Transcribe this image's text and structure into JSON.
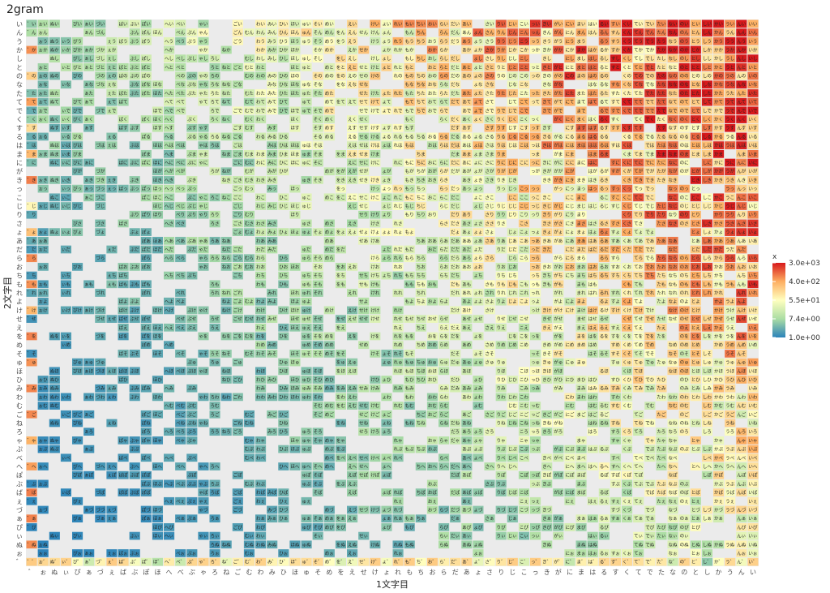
{
  "chart_data": {
    "type": "heatmap",
    "title": "2gram",
    "xlabel": "1文字目",
    "ylabel": "2文字目",
    "x_categories": [
      "゛",
      "ぉ",
      "ぬ",
      "ぃ",
      "ぴ",
      "ぁ",
      "づ",
      "ぇ",
      "ば",
      "ぶ",
      "ぽ",
      "ほ",
      "へ",
      "べ",
      "ぷ",
      "ゃ",
      "ろ",
      "ね",
      "ご",
      "む",
      "わ",
      "み",
      "ひ",
      "ほ",
      "ゅ",
      "そ",
      "め",
      "を",
      "え",
      "せ",
      "け",
      "ょ",
      "れ",
      "も",
      "ち",
      "お",
      "ら",
      "だ",
      "あ",
      "ょ",
      "さ",
      "り",
      "じ",
      "こ",
      "っ",
      "き",
      "が",
      "に",
      "ま",
      "は",
      "る",
      "す",
      "く",
      "て",
      "で",
      "た",
      "な",
      "の",
      "と",
      "し",
      "か",
      "う",
      "ん",
      "い"
    ],
    "y_categories": [
      "い",
      "ん",
      "う",
      "か",
      "し",
      "と",
      "の",
      "な",
      "た",
      "て",
      "で",
      "く",
      "す",
      "る",
      "は",
      "ま",
      "に",
      "が",
      "き",
      "っ",
      "こ",
      "じ",
      "り",
      "さ",
      "ょ",
      "あ",
      "だ",
      "ら",
      "お",
      "ち",
      "も",
      "れ",
      "よ",
      "け",
      "せ",
      "え",
      "を",
      "め",
      "そ",
      "ゅ",
      "ほ",
      "ひ",
      "み",
      "わ",
      "む",
      "ご",
      "ね",
      "ろ",
      "ゃ",
      "ぷ",
      "べ",
      "へ",
      "ぽ",
      "ぶ",
      "ば",
      "ぇ",
      "づ",
      "ぁ",
      "ぴ",
      "ぃ",
      "ぬ",
      "ぉ",
      "゛"
    ],
    "color_scale": {
      "name": "x",
      "log": true,
      "min": 1.0,
      "max": 3000,
      "breaks": [
        1.0,
        7.4,
        55,
        400,
        3000
      ],
      "break_labels": [
        "1.0e+00",
        "7.4e+00",
        "5.5e+01",
        "4.0e+02",
        "3.0e+03"
      ],
      "colors": [
        "#2b83ba",
        "#abdda4",
        "#ffffbf",
        "#fdae61",
        "#d7191c"
      ]
    },
    "missing_color": "#ebebeb",
    "panel_background": "#ebebeb",
    "grid": true,
    "legend": "right"
  }
}
